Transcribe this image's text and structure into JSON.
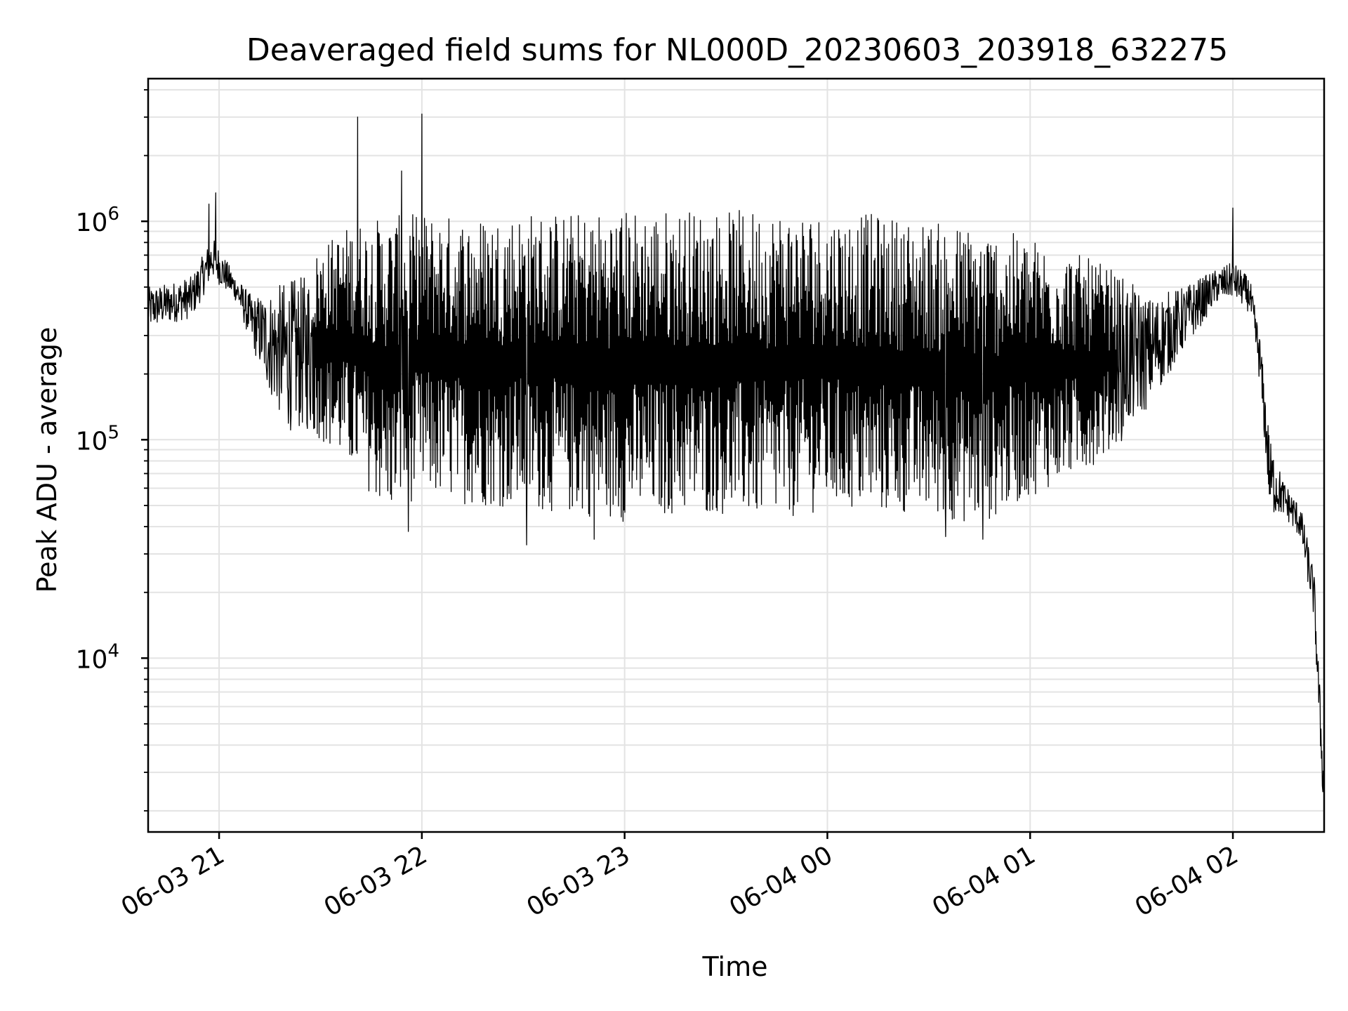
{
  "chart_data": {
    "type": "line",
    "title": "Deaveraged field sums for NL000D_20230603_203918_632275",
    "xlabel": "Time",
    "ylabel": "Peak ADU - average",
    "x_ticks": [
      "06-03 21",
      "06-03 22",
      "06-03 23",
      "06-04 00",
      "06-04 01",
      "06-04 02"
    ],
    "y_scale": "log",
    "y_ticks": [
      10000,
      100000,
      1000000
    ],
    "y_tick_labels": [
      {
        "base": "10",
        "exp": "4"
      },
      {
        "base": "10",
        "exp": "5"
      },
      {
        "base": "10",
        "exp": "6"
      }
    ],
    "xlim": [
      "2023-06-03 20:39",
      "2023-06-04 02:27"
    ],
    "ylim": [
      1600,
      4500000
    ],
    "grid": true,
    "line_color": "#000000",
    "envelope": [
      {
        "t": "2023-06-03 20:39",
        "high": 500000,
        "low": 320000
      },
      {
        "t": "2023-06-03 20:45",
        "high": 520000,
        "low": 340000
      },
      {
        "t": "2023-06-03 20:52",
        "high": 560000,
        "low": 360000
      },
      {
        "t": "2023-06-03 20:58",
        "high": 850000,
        "low": 550000
      },
      {
        "t": "2023-06-03 21:05",
        "high": 560000,
        "low": 430000
      },
      {
        "t": "2023-06-03 21:10",
        "high": 450000,
        "low": 260000
      },
      {
        "t": "2023-06-03 21:15",
        "high": 480000,
        "low": 160000
      },
      {
        "t": "2023-06-03 21:20",
        "high": 540000,
        "low": 110000
      },
      {
        "t": "2023-06-03 21:25",
        "high": 560000,
        "low": 110000
      },
      {
        "t": "2023-06-03 21:30",
        "high": 780000,
        "low": 100000
      },
      {
        "t": "2023-06-03 21:40",
        "high": 1000000,
        "low": 70000
      },
      {
        "t": "2023-06-03 21:50",
        "high": 1050000,
        "low": 45000
      },
      {
        "t": "2023-06-03 22:00",
        "high": 1100000,
        "low": 55000
      },
      {
        "t": "2023-06-03 22:15",
        "high": 1050000,
        "low": 50000
      },
      {
        "t": "2023-06-03 22:30",
        "high": 1120000,
        "low": 48000
      },
      {
        "t": "2023-06-03 22:45",
        "high": 1100000,
        "low": 45000
      },
      {
        "t": "2023-06-03 23:00",
        "high": 1150000,
        "low": 42000
      },
      {
        "t": "2023-06-03 23:15",
        "high": 1150000,
        "low": 45000
      },
      {
        "t": "2023-06-03 23:30",
        "high": 1120000,
        "low": 45000
      },
      {
        "t": "2023-06-03 23:45",
        "high": 1150000,
        "low": 42000
      },
      {
        "t": "2023-06-04 00:00",
        "high": 1100000,
        "low": 48000
      },
      {
        "t": "2023-06-04 00:15",
        "high": 1080000,
        "low": 45000
      },
      {
        "t": "2023-06-04 00:30",
        "high": 1000000,
        "low": 45000
      },
      {
        "t": "2023-06-04 00:45",
        "high": 950000,
        "low": 40000
      },
      {
        "t": "2023-06-04 01:00",
        "high": 850000,
        "low": 55000
      },
      {
        "t": "2023-06-04 01:15",
        "high": 700000,
        "low": 70000
      },
      {
        "t": "2023-06-04 01:25",
        "high": 600000,
        "low": 90000
      },
      {
        "t": "2023-06-04 01:35",
        "high": 450000,
        "low": 140000
      },
      {
        "t": "2023-06-04 01:45",
        "high": 500000,
        "low": 250000
      },
      {
        "t": "2023-06-04 01:55",
        "high": 600000,
        "low": 420000
      },
      {
        "t": "2023-06-04 02:00",
        "high": 650000,
        "low": 450000
      },
      {
        "t": "2023-06-04 02:05",
        "high": 550000,
        "low": 380000
      },
      {
        "t": "2023-06-04 02:08",
        "high": 300000,
        "low": 180000
      },
      {
        "t": "2023-06-04 02:11",
        "high": 100000,
        "low": 45000
      },
      {
        "t": "2023-06-04 02:15",
        "high": 65000,
        "low": 45000
      },
      {
        "t": "2023-06-04 02:20",
        "high": 50000,
        "low": 35000
      },
      {
        "t": "2023-06-04 02:24",
        "high": 25000,
        "low": 15000
      },
      {
        "t": "2023-06-04 02:27",
        "high": 3000,
        "low": 1700
      }
    ],
    "spikes": [
      {
        "t": "2023-06-03 20:57",
        "value": 1200000
      },
      {
        "t": "2023-06-03 20:59",
        "value": 1350000
      },
      {
        "t": "2023-06-03 21:41",
        "value": 3000000
      },
      {
        "t": "2023-06-03 21:54",
        "value": 1700000
      },
      {
        "t": "2023-06-03 22:00",
        "value": 3100000
      },
      {
        "t": "2023-06-04 02:00",
        "value": 1150000
      },
      {
        "t": "2023-06-03 21:56",
        "value": 38000
      },
      {
        "t": "2023-06-03 22:31",
        "value": 33000
      },
      {
        "t": "2023-06-03 22:51",
        "value": 35000
      },
      {
        "t": "2023-06-04 00:35",
        "value": 36000
      },
      {
        "t": "2023-06-04 00:46",
        "value": 35000
      }
    ]
  }
}
